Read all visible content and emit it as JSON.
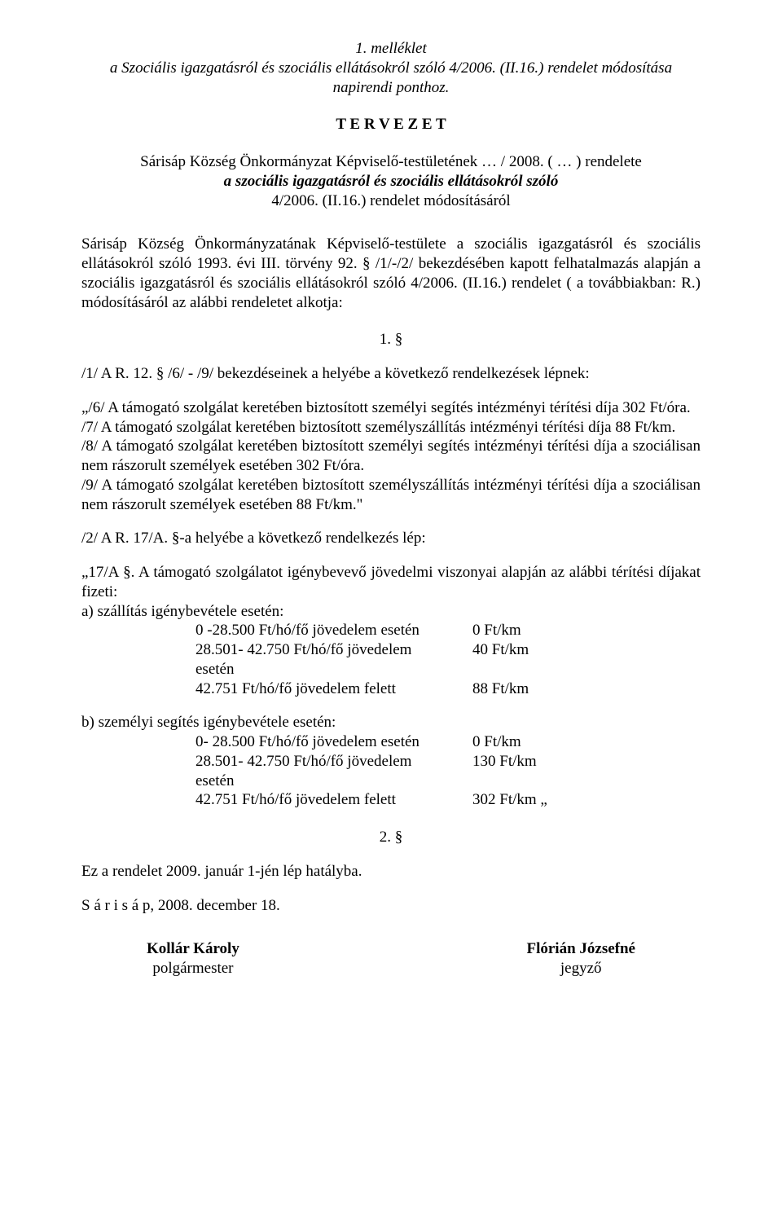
{
  "header": {
    "attachment": "1. melléklet",
    "subject_line1": "a Szociális igazgatásról és szociális ellátásokról szóló 4/2006. (II.16.) rendelet módosítása",
    "subject_line2": "napirendi ponthoz.",
    "draft": "T E R V E Z E T",
    "title_line1": "Sárisáp Község Önkormányzat Képviselő-testületének … / 2008. ( … )  rendelete",
    "title_line2": "a szociális igazgatásról és szociális ellátásokról szóló",
    "title_line3": "4/2006. (II.16.) rendelet módosításáról"
  },
  "preamble": "Sárisáp Község Önkormányzatának Képviselő-testülete a szociális igazgatásról és szociális ellátásokról szóló 1993. évi III. törvény 92. § /1/-/2/ bekezdésében kapott felhatalmazás alapján a szociális igazgatásról és szociális ellátásokról szóló 4/2006. (II.16.) rendelet ( a továbbiakban: R.) módosításáról az alábbi rendeletet alkotja:",
  "section1": {
    "num": "1. §",
    "p1_intro": "/1/ A R. 12. § /6/ - /9/ bekezdéseinek a helyébe a következő rendelkezések lépnek:",
    "p6": "„/6/ A támogató szolgálat keretében biztosított személyi segítés intézményi térítési díja 302 Ft/óra.",
    "p7": "/7/ A támogató szolgálat keretében biztosított személyszállítás intézményi térítési díja 88 Ft/km.",
    "p8": "/8/ A támogató szolgálat keretében biztosított személyi segítés intézményi térítési díja a szociálisan nem rászorult személyek esetében 302 Ft/óra.",
    "p9": "/9/ A támogató szolgálat keretében biztosított személyszállítás intézményi térítési díja a szociálisan nem rászorult személyek esetében 88 Ft/km.\"",
    "p2_intro": "/2/ A R. 17/A. §-a helyébe a következő rendelkezés lép:",
    "p17a_intro": "„17/A §. A támogató szolgálatot igénybevevő  jövedelmi viszonyai alapján az alábbi térítési díjakat fizeti:",
    "a_label": "a)  szállítás igénybevétele esetén:",
    "a_rows": [
      {
        "range": "0 -28.500  Ft/hó/fő jövedelem esetén",
        "fee": "0 Ft/km"
      },
      {
        "range": "28.501- 42.750  Ft/hó/fő jövedelem esetén",
        "fee": "40 Ft/km"
      },
      {
        "range": "42.751 Ft/hó/fő jövedelem felett",
        "fee": "88 Ft/km"
      }
    ],
    "b_label": "b)  személyi segítés igénybevétele esetén:",
    "b_rows": [
      {
        "range": "0- 28.500 Ft/hó/fő jövedelem esetén",
        "fee": "  0 Ft/km"
      },
      {
        "range": "28.501- 42.750  Ft/hó/fő jövedelem esetén",
        "fee": "130 Ft/km"
      },
      {
        "range": "42.751 Ft/hó/fő jövedelem felett",
        "fee": "302 Ft/km „"
      }
    ]
  },
  "section2": {
    "num": "2. §",
    "text": "Ez a rendelet 2009. január 1-jén lép hatályba."
  },
  "closing": {
    "place_date": "S á r i s á p, 2008. december 18."
  },
  "signatures": {
    "left_name": "Kollár Károly",
    "left_title": "polgármester",
    "right_name": "Flórián Józsefné",
    "right_title": "jegyző"
  }
}
